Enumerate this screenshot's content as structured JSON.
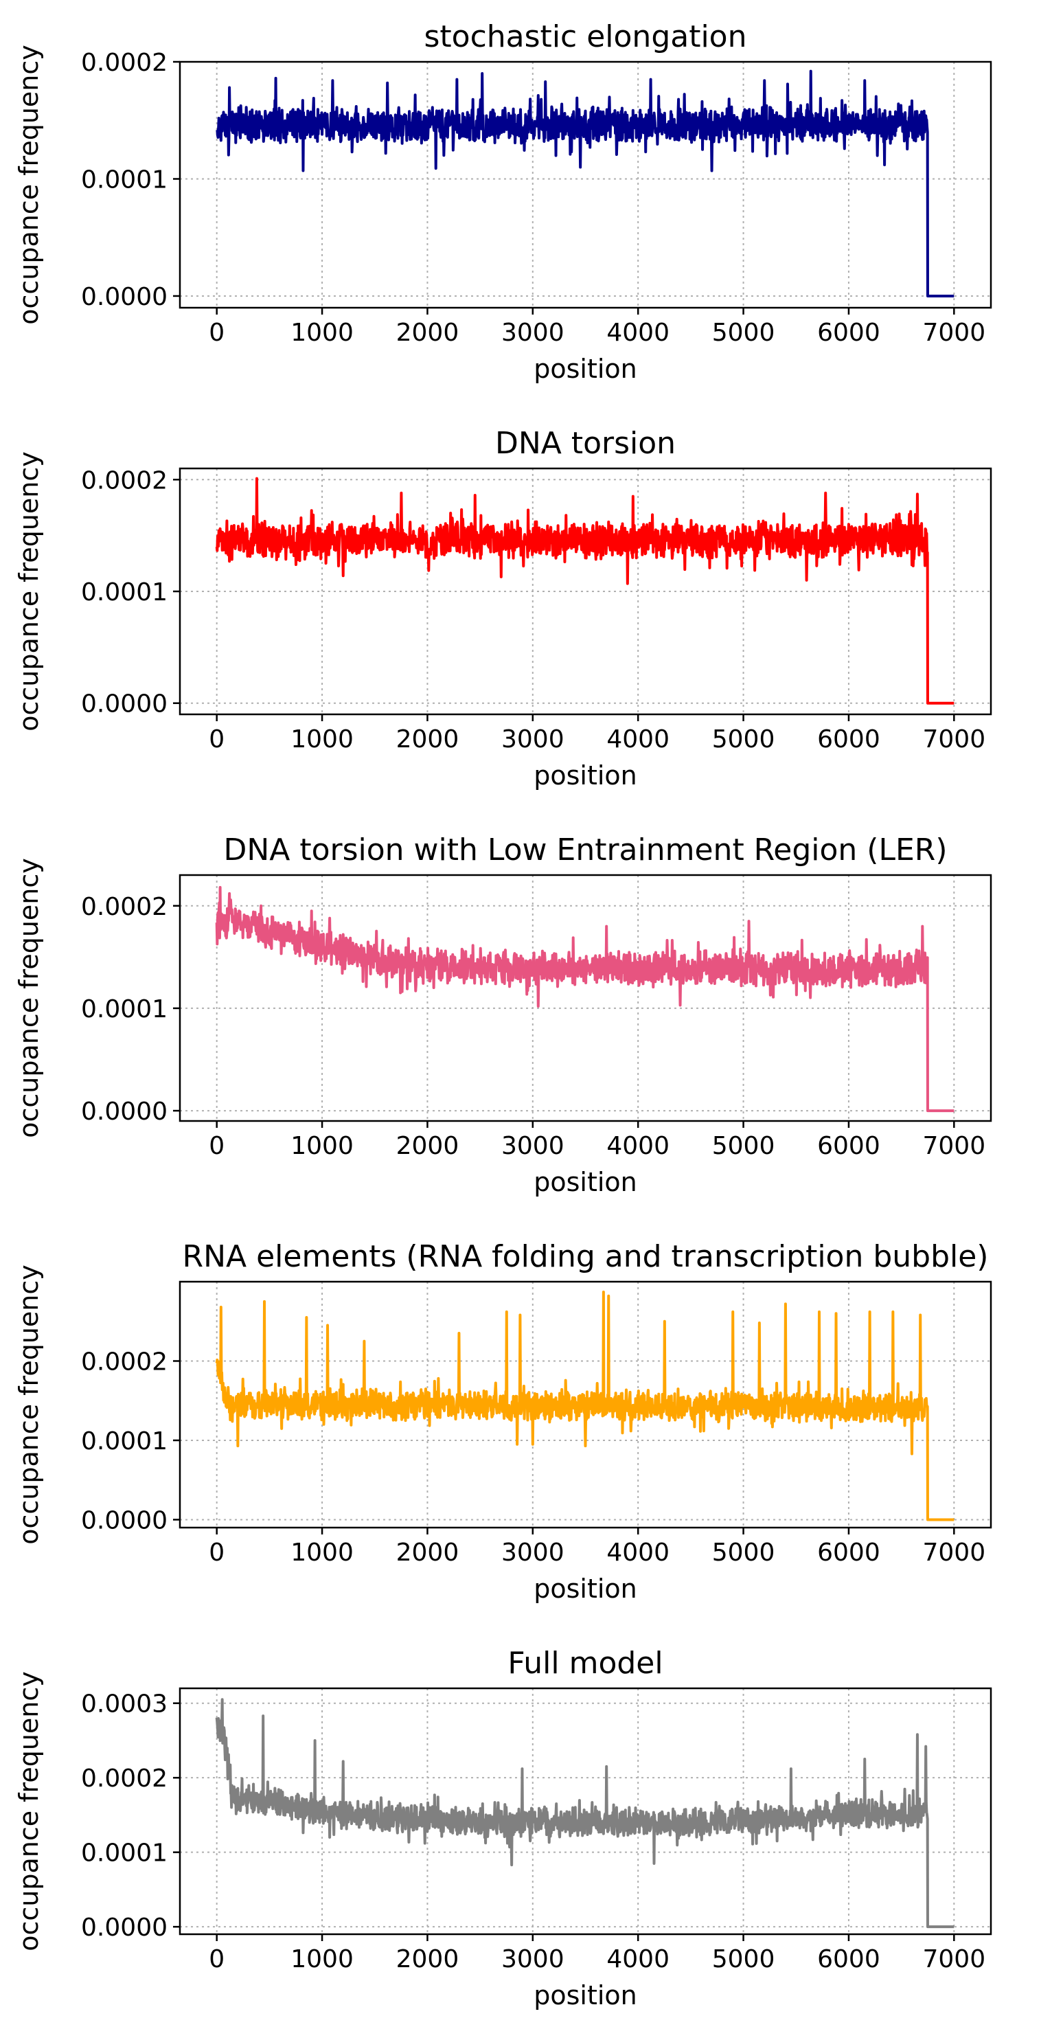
{
  "chart_data": [
    {
      "type": "line",
      "title": "stochastic elongation",
      "xlabel": "position",
      "ylabel": "occupance frequency",
      "xlim": [
        -350,
        7350
      ],
      "ylim": [
        -1e-05,
        0.0002
      ],
      "xticks": [
        0,
        1000,
        2000,
        3000,
        4000,
        5000,
        6000,
        7000
      ],
      "xtick_labels": [
        "0",
        "1000",
        "2000",
        "3000",
        "4000",
        "5000",
        "6000",
        "7000"
      ],
      "yticks": [
        0,
        0.0001,
        0.0002
      ],
      "ytick_labels": [
        "0.0000",
        "0.0001",
        "0.0002"
      ],
      "grid": true,
      "series": [
        {
          "color": "#00008b",
          "baseline": [
            [
              0,
              0.000146
            ],
            [
              6750,
              0.000146
            ]
          ],
          "noise_amplitude": 1.4e-05,
          "spikes": [
            [
              120,
              0.000178
            ],
            [
              560,
              0.000186
            ],
            [
              1100,
              0.000184
            ],
            [
              1620,
              0.000182
            ],
            [
              2280,
              0.000185
            ],
            [
              2520,
              0.00019
            ],
            [
              3120,
              0.000183
            ],
            [
              4120,
              0.000185
            ],
            [
              5200,
              0.000184
            ],
            [
              5420,
              0.000181
            ],
            [
              5640,
              0.000192
            ],
            [
              6150,
              0.000184
            ],
            [
              820,
              0.000107
            ],
            [
              2080,
              0.000109
            ],
            [
              3450,
              0.00011
            ],
            [
              4700,
              0.000107
            ],
            [
              6340,
              0.000112
            ]
          ],
          "drop_at": 6750,
          "tail_end": 7000,
          "tail_value": 0
        }
      ]
    },
    {
      "type": "line",
      "title": "DNA torsion",
      "xlabel": "position",
      "ylabel": "occupance frequency",
      "xlim": [
        -350,
        7350
      ],
      "ylim": [
        -1e-05,
        0.00021
      ],
      "xticks": [
        0,
        1000,
        2000,
        3000,
        4000,
        5000,
        6000,
        7000
      ],
      "xtick_labels": [
        "0",
        "1000",
        "2000",
        "3000",
        "4000",
        "5000",
        "6000",
        "7000"
      ],
      "yticks": [
        0,
        0.0001,
        0.0002
      ],
      "ytick_labels": [
        "0.0000",
        "0.0001",
        "0.0002"
      ],
      "grid": true,
      "series": [
        {
          "color": "#ff0000",
          "baseline": [
            [
              0,
              0.000146
            ],
            [
              6750,
              0.000146
            ]
          ],
          "noise_amplitude": 1.5e-05,
          "spikes": [
            [
              380,
              0.000201
            ],
            [
              1750,
              0.000188
            ],
            [
              2450,
              0.000186
            ],
            [
              3950,
              0.000185
            ],
            [
              5780,
              0.000188
            ],
            [
              6650,
              0.000187
            ],
            [
              3900,
              0.000107
            ],
            [
              5600,
              0.00011
            ],
            [
              2700,
              0.000113
            ],
            [
              1200,
              0.000114
            ]
          ],
          "drop_at": 6750,
          "tail_end": 7000,
          "tail_value": 0
        }
      ]
    },
    {
      "type": "line",
      "title": "DNA torsion with Low Entrainment Region (LER)",
      "xlabel": "position",
      "ylabel": "occupance frequency",
      "xlim": [
        -350,
        7350
      ],
      "ylim": [
        -1e-05,
        0.00023
      ],
      "xticks": [
        0,
        1000,
        2000,
        3000,
        4000,
        5000,
        6000,
        7000
      ],
      "xtick_labels": [
        "0",
        "1000",
        "2000",
        "3000",
        "4000",
        "5000",
        "6000",
        "7000"
      ],
      "yticks": [
        0,
        0.0001,
        0.0002
      ],
      "ytick_labels": [
        "0.0000",
        "0.0001",
        "0.0002"
      ],
      "grid": true,
      "series": [
        {
          "color": "#e75480",
          "baseline": [
            [
              0,
              0.000188
            ],
            [
              500,
              0.000175
            ],
            [
              1000,
              0.00016
            ],
            [
              1600,
              0.000145
            ],
            [
              2200,
              0.00014
            ],
            [
              6750,
              0.000138
            ]
          ],
          "noise_amplitude": 1.6e-05,
          "spikes": [
            [
              30,
              0.000218
            ],
            [
              120,
              0.000212
            ],
            [
              420,
              0.0002
            ],
            [
              900,
              0.000195
            ],
            [
              5050,
              0.000185
            ],
            [
              3700,
              0.00018
            ],
            [
              3050,
              0.000102
            ],
            [
              4400,
              0.000103
            ],
            [
              6700,
              0.00018
            ]
          ],
          "drop_at": 6750,
          "tail_end": 7000,
          "tail_value": 0
        }
      ]
    },
    {
      "type": "line",
      "title": "RNA elements (RNA folding and transcription bubble)",
      "xlabel": "position",
      "ylabel": "occupance frequency",
      "xlim": [
        -350,
        7350
      ],
      "ylim": [
        -1e-05,
        0.0003
      ],
      "xticks": [
        0,
        1000,
        2000,
        3000,
        4000,
        5000,
        6000,
        7000
      ],
      "xtick_labels": [
        "0",
        "1000",
        "2000",
        "3000",
        "4000",
        "5000",
        "6000",
        "7000"
      ],
      "yticks": [
        0,
        0.0001,
        0.0002
      ],
      "ytick_labels": [
        "0.0000",
        "0.0001",
        "0.0002"
      ],
      "grid": true,
      "series": [
        {
          "color": "#ffa500",
          "baseline": [
            [
              0,
              0.0002
            ],
            [
              100,
              0.000145
            ],
            [
              6750,
              0.000142
            ]
          ],
          "noise_amplitude": 1.8e-05,
          "spikes": [
            [
              40,
              0.000268
            ],
            [
              450,
              0.000275
            ],
            [
              850,
              0.000255
            ],
            [
              1050,
              0.000245
            ],
            [
              1400,
              0.000225
            ],
            [
              2300,
              0.000235
            ],
            [
              2750,
              0.000262
            ],
            [
              2880,
              0.000258
            ],
            [
              3670,
              0.000287
            ],
            [
              3720,
              0.000282
            ],
            [
              4250,
              0.00025
            ],
            [
              4900,
              0.000262
            ],
            [
              5150,
              0.000248
            ],
            [
              5400,
              0.000272
            ],
            [
              5720,
              0.000262
            ],
            [
              5880,
              0.00026
            ],
            [
              6200,
              0.000262
            ],
            [
              6420,
              0.000262
            ],
            [
              6680,
              0.000258
            ],
            [
              2850,
              9.5e-05
            ],
            [
              3000,
              9.5e-05
            ],
            [
              3500,
              9.3e-05
            ],
            [
              6600,
              8.3e-05
            ],
            [
              200,
              9.3e-05
            ]
          ],
          "drop_at": 6750,
          "tail_end": 7000,
          "tail_value": 0
        }
      ]
    },
    {
      "type": "line",
      "title": "Full model",
      "xlabel": "position",
      "ylabel": "occupance frequency",
      "xlim": [
        -350,
        7350
      ],
      "ylim": [
        -1e-05,
        0.00032
      ],
      "xticks": [
        0,
        1000,
        2000,
        3000,
        4000,
        5000,
        6000,
        7000
      ],
      "xtick_labels": [
        "0",
        "1000",
        "2000",
        "3000",
        "4000",
        "5000",
        "6000",
        "7000"
      ],
      "yticks": [
        0,
        0.0001,
        0.0002,
        0.0003
      ],
      "ytick_labels": [
        "0.0000",
        "0.0001",
        "0.0002",
        "0.0003"
      ],
      "grid": true,
      "series": [
        {
          "color": "#808080",
          "baseline": [
            [
              0,
              0.00027
            ],
            [
              80,
              0.000255
            ],
            [
              150,
              0.000175
            ],
            [
              600,
              0.000165
            ],
            [
              1200,
              0.00015
            ],
            [
              2500,
              0.00014
            ],
            [
              4500,
              0.00014
            ],
            [
              6000,
              0.00015
            ],
            [
              6750,
              0.000155
            ]
          ],
          "noise_amplitude": 1.8e-05,
          "spikes": [
            [
              50,
              0.000305
            ],
            [
              440,
              0.000283
            ],
            [
              930,
              0.00025
            ],
            [
              1200,
              0.000222
            ],
            [
              2900,
              0.000212
            ],
            [
              3700,
              0.000215
            ],
            [
              5450,
              0.000212
            ],
            [
              6150,
              0.000225
            ],
            [
              6650,
              0.000258
            ],
            [
              6730,
              0.000242
            ],
            [
              2800,
              8.3e-05
            ],
            [
              4150,
              8.5e-05
            ]
          ],
          "drop_at": 6750,
          "tail_end": 7000,
          "tail_value": 0
        }
      ]
    }
  ]
}
